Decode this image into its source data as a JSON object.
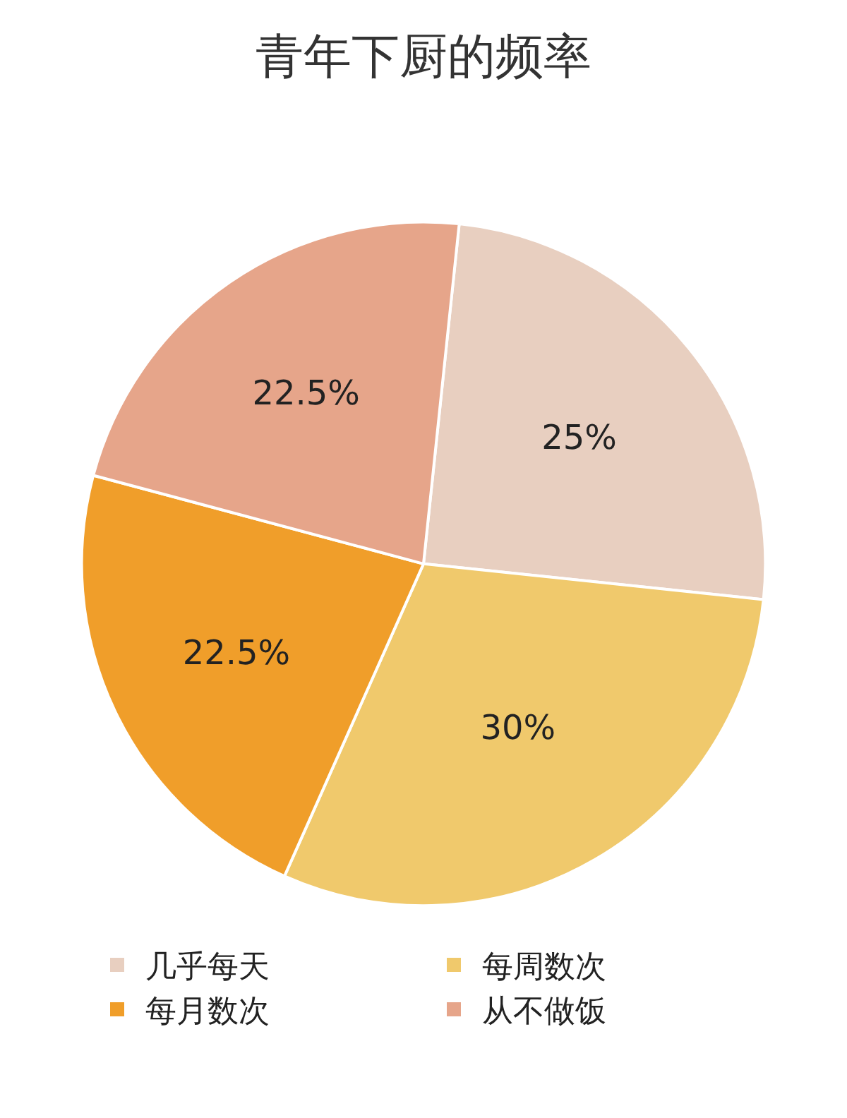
{
  "chart_data": {
    "type": "pie",
    "title": "青年下厨的频率",
    "categories": [
      "几乎每天",
      "每周数次",
      "每月数次",
      "从不做饭"
    ],
    "values": [
      25,
      30,
      22.5,
      22.5
    ],
    "colors": [
      "#e8cfc0",
      "#f0c96c",
      "#f09e2a",
      "#e6a58a"
    ],
    "value_labels": [
      "25%",
      "30%",
      "22.5%",
      "22.5%"
    ],
    "legend": "bottom"
  }
}
